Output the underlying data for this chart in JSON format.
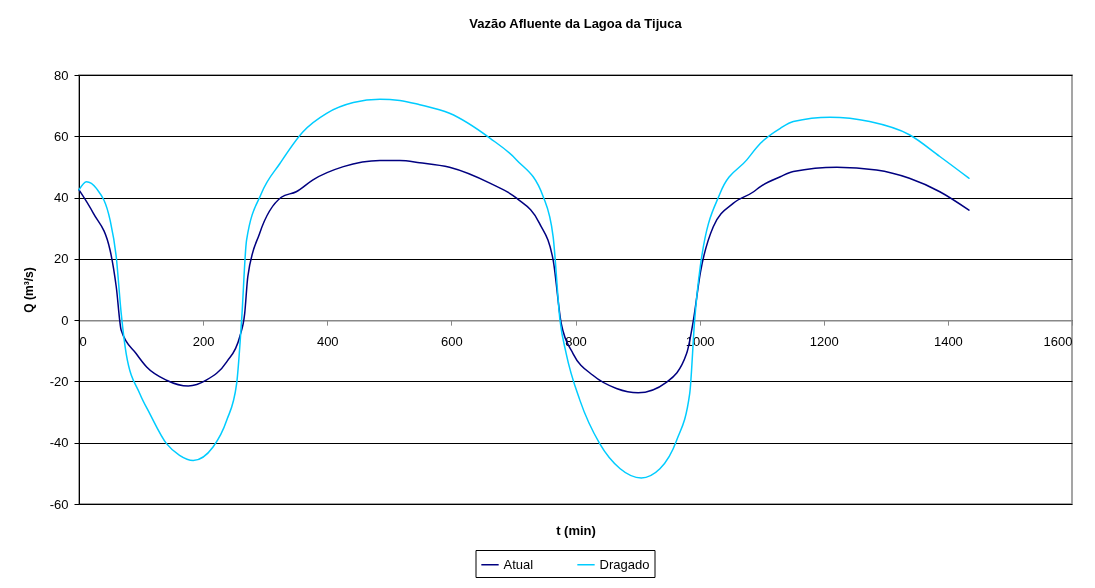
{
  "chart_data": {
    "type": "line",
    "title": "Vazão Afluente da Lagoa da Tijuca",
    "xlabel": "t (min)",
    "ylabel": "Q (m³/s)",
    "xlim": [
      0,
      1600
    ],
    "xticks": [
      0,
      200,
      400,
      600,
      800,
      1000,
      1200,
      1400,
      1600
    ],
    "ylim": [
      -60,
      80
    ],
    "yticks": [
      -60,
      -40,
      -20,
      0,
      20,
      40,
      60,
      80
    ],
    "grid": "y",
    "legend": "bottom",
    "line_style": "solid",
    "marker": "none",
    "series": [
      {
        "name": "Atual",
        "color": "#000080",
        "x": [
          0,
          23,
          50,
          60,
          68,
          92,
          109,
          141,
          176,
          205,
          238,
          259,
          267,
          272,
          291,
          326,
          350,
          377,
          426,
          485,
          517,
          549,
          597,
          662,
          705,
          742,
          764,
          777,
          796,
          828,
          866,
          901,
          947,
          979,
          990,
          1001,
          1022,
          1054,
          1087,
          1098,
          1130,
          1151,
          1221,
          1285,
          1338,
          1387,
          1434
        ],
        "values": [
          42.5,
          34.9,
          22.9,
          10.9,
          -3.3,
          -10.9,
          -15.3,
          -19.6,
          -21.5,
          -19.6,
          -13.6,
          -5.4,
          2.2,
          14.2,
          28.3,
          40.1,
          41.9,
          45.8,
          50.1,
          52.1,
          52.1,
          51.4,
          49.9,
          44.7,
          39.8,
          31.6,
          19.6,
          -1.1,
          -10.9,
          -18.0,
          -22.3,
          -23.7,
          -20.2,
          -10.9,
          0,
          15.3,
          30.5,
          38.1,
          41.9,
          43.6,
          46.8,
          48.5,
          49.9,
          49.0,
          46.3,
          41.9,
          35.9
        ]
      },
      {
        "name": "Dragado",
        "color": "#00ccff",
        "x": [
          0,
          12,
          28,
          50,
          60,
          68,
          76,
          98,
          114,
          141,
          162,
          184,
          216,
          238,
          254,
          262,
          270,
          294,
          324,
          361,
          399,
          442,
          485,
          517,
          549,
          597,
          662,
          705,
          748,
          764,
          775,
          785,
          807,
          839,
          872,
          906,
          936,
          963,
          984,
          992,
          1001,
          1033,
          1076,
          1098,
          1130,
          1151,
          1210,
          1274,
          1338,
          1387,
          1434
        ],
        "values": [
          42.5,
          45.2,
          43.0,
          32.7,
          20.7,
          2.2,
          -10.9,
          -24.0,
          -30.5,
          -40.3,
          -44.1,
          -45.8,
          -41.4,
          -32.7,
          -20.7,
          0,
          26.1,
          41.4,
          51.2,
          61.5,
          67.5,
          71.0,
          72.1,
          71.7,
          70.3,
          67.5,
          59.4,
          52.3,
          40.3,
          27.2,
          0,
          -10.9,
          -26.1,
          -40.3,
          -48.5,
          -51.5,
          -48.5,
          -39.2,
          -24.0,
          0,
          17.4,
          41.4,
          52.3,
          57.7,
          62.6,
          64.8,
          66.2,
          64.8,
          60.5,
          53.4,
          46.3
        ]
      }
    ]
  }
}
